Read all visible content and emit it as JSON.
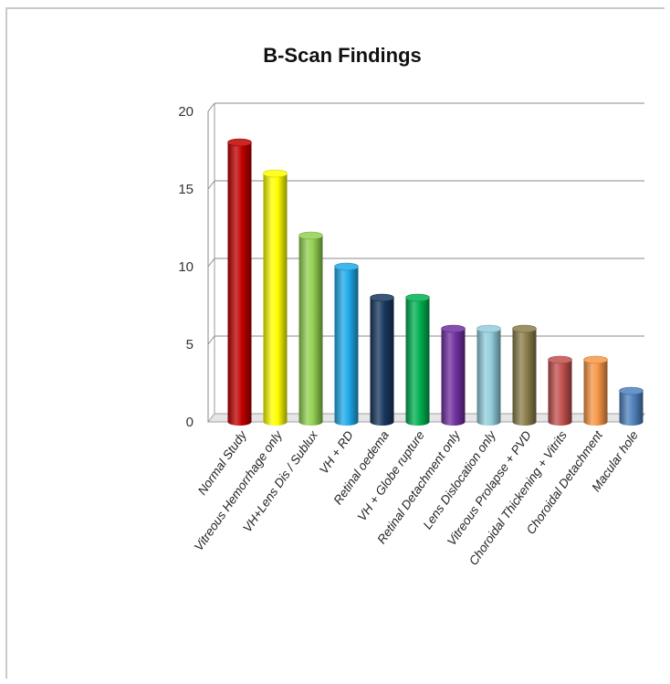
{
  "chart_data": {
    "type": "bar",
    "title": "B-Scan Findings",
    "xlabel": "",
    "ylabel": "",
    "ylim": [
      0,
      20
    ],
    "yticks": [
      0,
      5,
      10,
      15,
      20
    ],
    "grid": true,
    "categories": [
      "Normal Study",
      "Vitreous Hemorrhage only",
      "VH+Lens Dis / Sublux",
      "VH + RD",
      "Retinal oedema",
      "VH + Globe rupture",
      "Retinal Detachment only",
      "Lens Dislocation only",
      "Vitreous Prolapse + PVD",
      "Choroidal Thickening + Vitrits",
      "Choroidal Detachment",
      "Macular hole"
    ],
    "values": [
      18,
      16,
      12,
      10,
      8,
      8,
      6,
      6,
      6,
      4,
      4,
      2
    ],
    "colors": [
      "#c00000",
      "#ffff00",
      "#92d050",
      "#1fa9e8",
      "#17375e",
      "#00b050",
      "#7030a0",
      "#92cddc",
      "#8b7d4a",
      "#c0504d",
      "#f79646",
      "#4f81bd"
    ]
  }
}
